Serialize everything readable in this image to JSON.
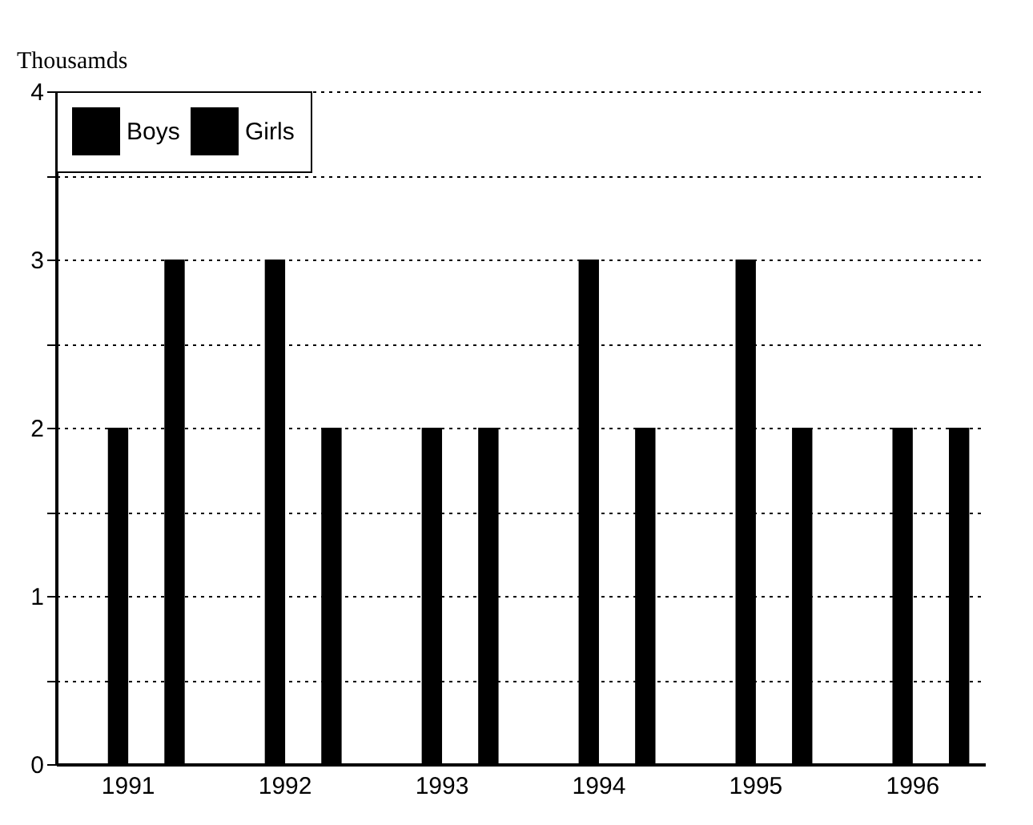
{
  "chart_data": {
    "type": "bar",
    "ylabel": "Thousamds",
    "categories": [
      "1991",
      "1992",
      "1993",
      "1994",
      "1995",
      "1996"
    ],
    "series": [
      {
        "name": "Boys",
        "color": "#000000",
        "values": [
          2,
          3,
          2,
          3,
          3,
          2
        ]
      },
      {
        "name": "Girls",
        "color": "#000000",
        "values": [
          3,
          2,
          2,
          2,
          2,
          2
        ]
      }
    ],
    "ylim": [
      0,
      4
    ],
    "yticks": [
      0,
      {
        "value": 0.5,
        "label": null
      },
      1,
      {
        "value": 1.5,
        "label": null
      },
      2,
      {
        "value": 2.5,
        "label": null
      },
      3,
      {
        "value": 3.5,
        "label": null
      },
      4
    ],
    "grid": "y",
    "legend": "top left"
  }
}
